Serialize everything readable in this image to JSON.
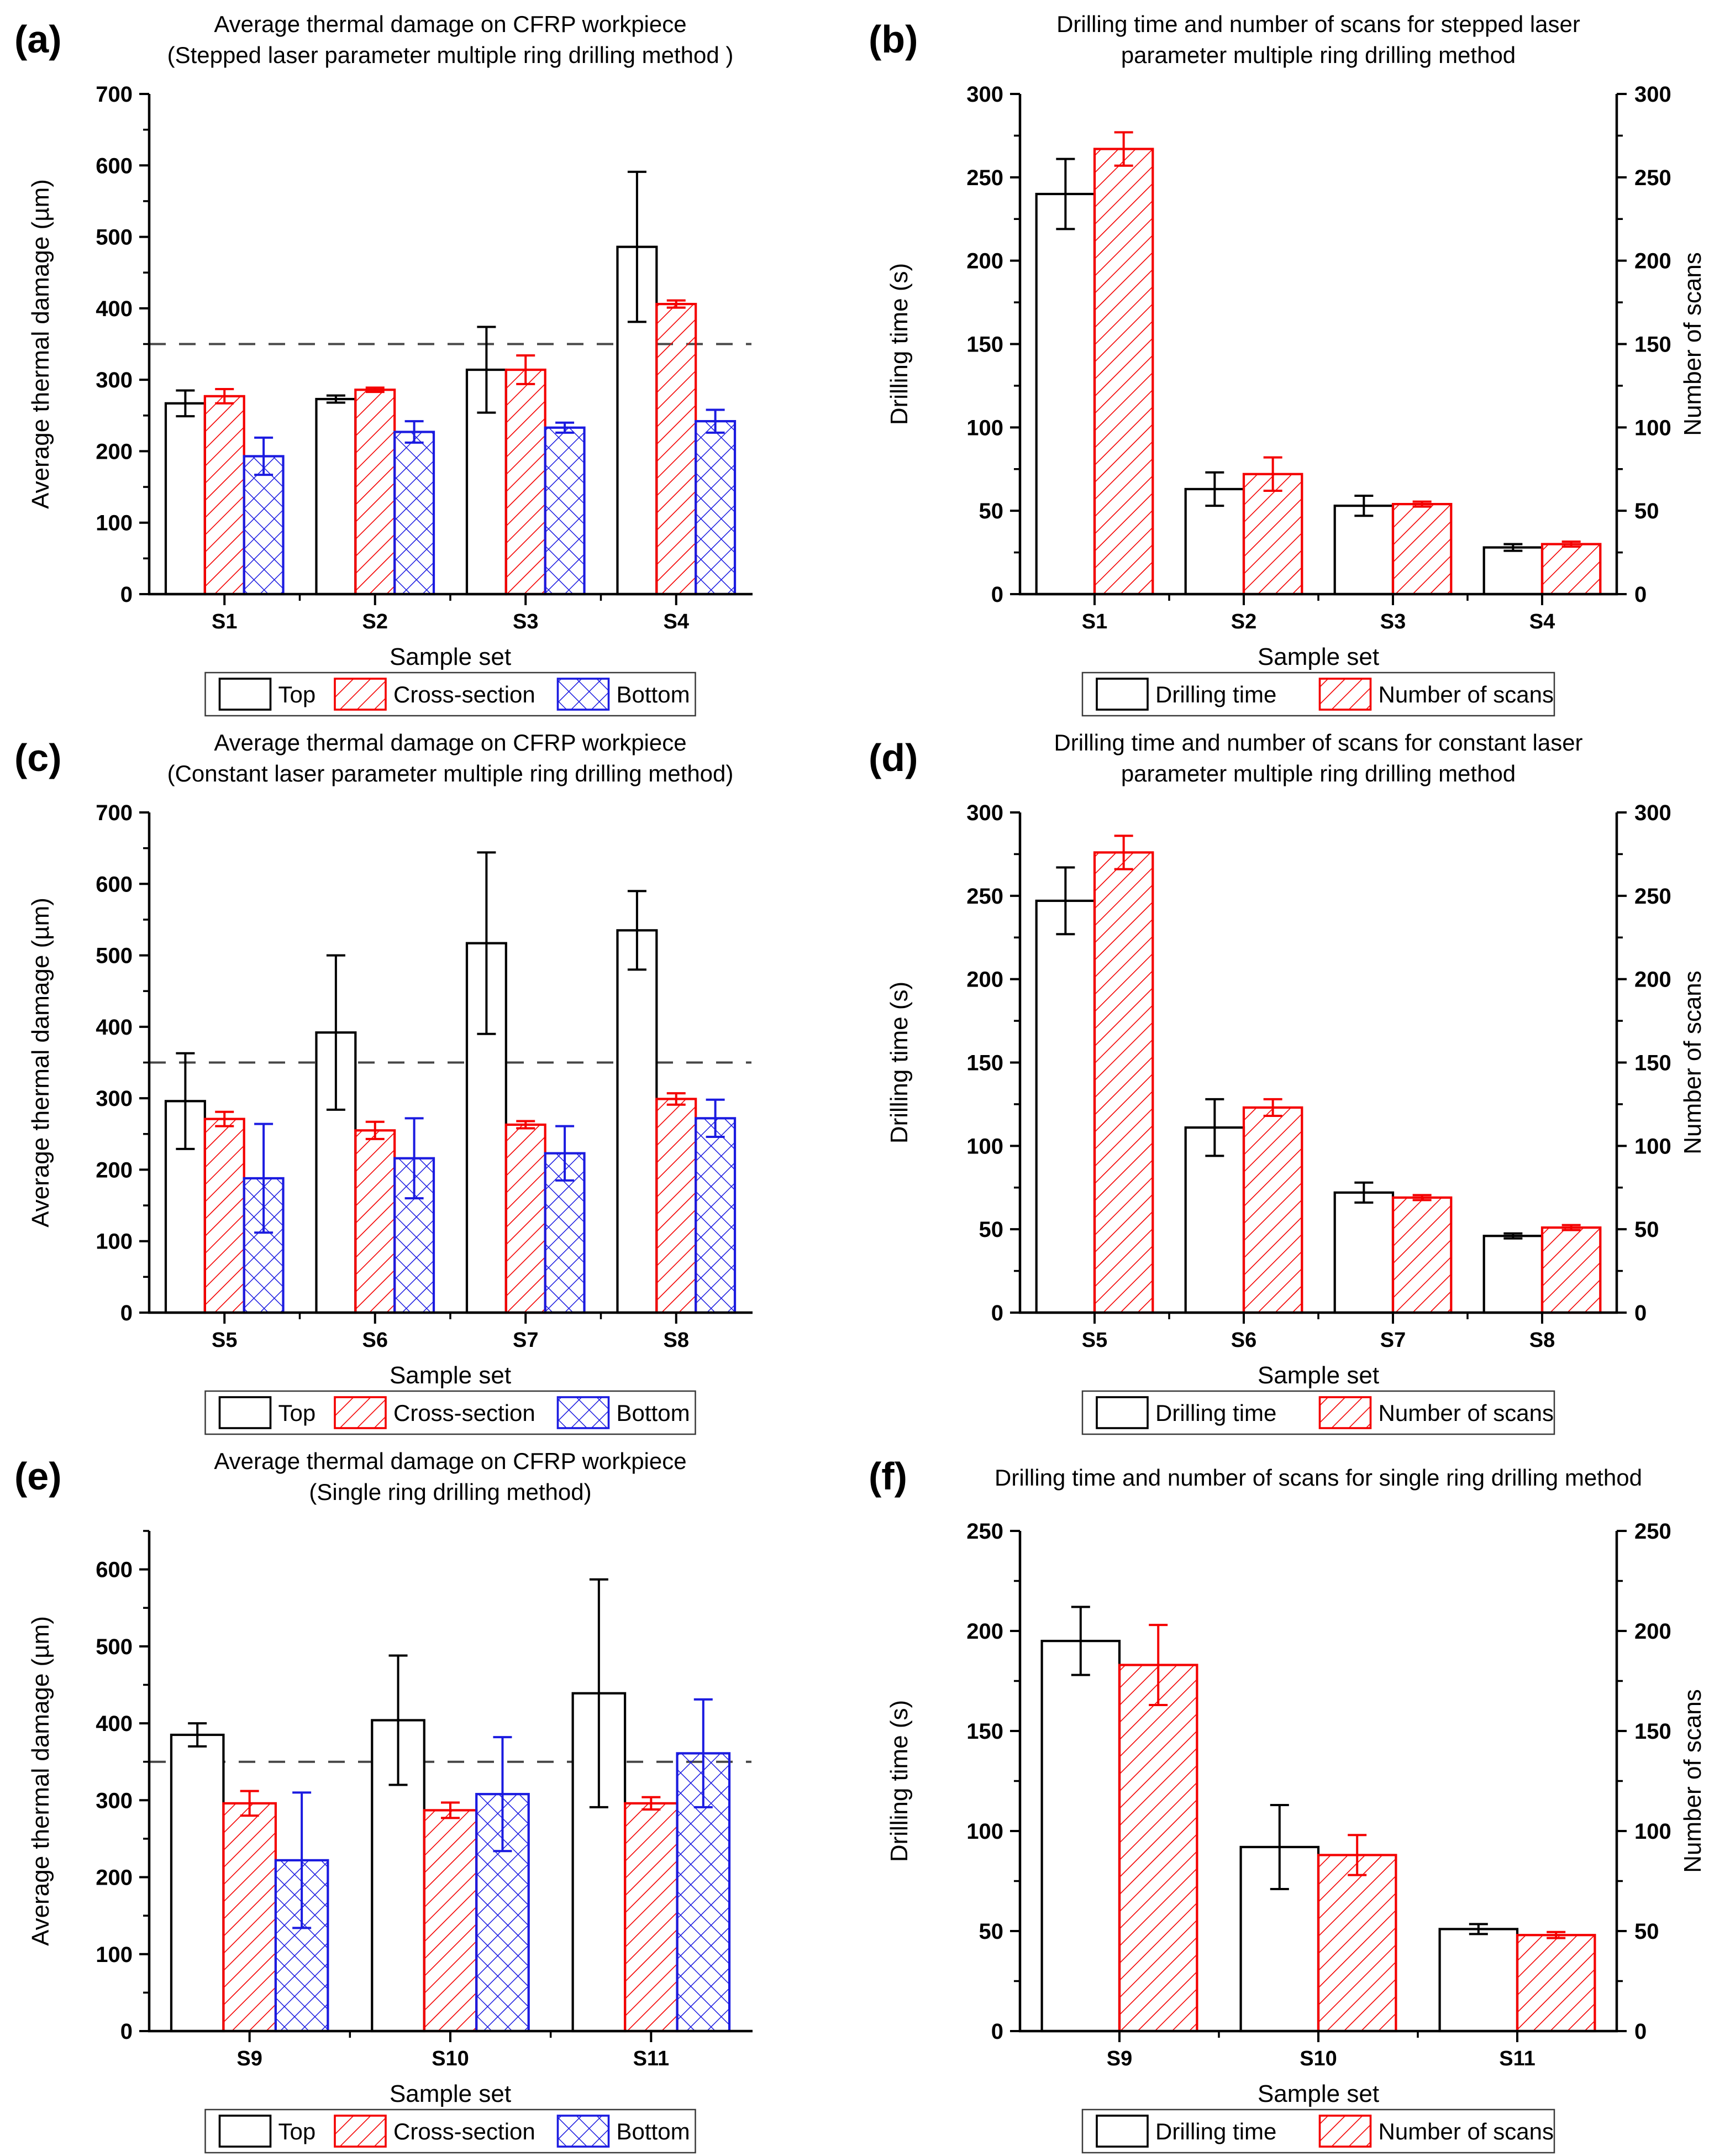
{
  "figure_title": "Thermal damage and drilling time figure panels",
  "colors": {
    "black": "#000000",
    "red": "#f40000",
    "blue": "#1b1be0",
    "ref_line": "#474747",
    "legend_border": "#3a3a3a"
  },
  "chart_data": [
    {
      "id": "a",
      "panel_label": "(a)",
      "type": "bar",
      "title_lines": [
        "Average thermal damage on CFRP workpiece",
        "(Stepped laser parameter multiple ring drilling method )"
      ],
      "categories": [
        "S1",
        "S2",
        "S3",
        "S4"
      ],
      "xlabel": "Sample set",
      "ylabel_left": "Average thermal damage (µm)",
      "ylabel_right": null,
      "ylim": [
        0,
        700
      ],
      "ymax_major": 700,
      "ytick_major": 100,
      "grid": false,
      "ref_line": 350,
      "legend_position": "bottom",
      "series": [
        {
          "name": "Top",
          "style": "solid-black",
          "values": [
            267,
            273,
            314,
            486
          ],
          "errors": [
            18,
            5,
            60,
            105
          ]
        },
        {
          "name": "Cross-section",
          "style": "hatch-red",
          "values": [
            277,
            286,
            314,
            406
          ],
          "errors": [
            10,
            3,
            20,
            5
          ]
        },
        {
          "name": "Bottom",
          "style": "cross-blue",
          "values": [
            193,
            227,
            233,
            242
          ],
          "errors": [
            26,
            15,
            7,
            16
          ]
        }
      ]
    },
    {
      "id": "b",
      "panel_label": "(b)",
      "type": "bar",
      "title_lines": [
        "Drilling time and number of scans for stepped laser",
        "parameter multiple ring drilling method"
      ],
      "categories": [
        "S1",
        "S2",
        "S3",
        "S4"
      ],
      "xlabel": "Sample set",
      "ylabel_left": "Drilling time (s)",
      "ylabel_right": "Number of scans",
      "ylim": [
        0,
        300
      ],
      "ymax_major": 300,
      "ytick_major": 50,
      "grid": false,
      "ref_line": null,
      "legend_position": "bottom",
      "series": [
        {
          "name": "Drilling time",
          "style": "solid-black",
          "values": [
            240,
            63,
            53,
            28
          ],
          "errors": [
            21,
            10,
            6,
            2
          ]
        },
        {
          "name": "Number of scans",
          "style": "hatch-red",
          "values": [
            267,
            72,
            54,
            30
          ],
          "errors": [
            10,
            10,
            1.5,
            1.5
          ]
        }
      ]
    },
    {
      "id": "c",
      "panel_label": "(c)",
      "type": "bar",
      "title_lines": [
        "Average thermal damage on CFRP workpiece",
        "(Constant laser parameter multiple ring drilling method)"
      ],
      "categories": [
        "S5",
        "S6",
        "S7",
        "S8"
      ],
      "xlabel": "Sample set",
      "ylabel_left": "Average thermal damage (µm)",
      "ylabel_right": null,
      "ylim": [
        0,
        700
      ],
      "ymax_major": 700,
      "ytick_major": 100,
      "grid": false,
      "ref_line": 350,
      "legend_position": "bottom",
      "series": [
        {
          "name": "Top",
          "style": "solid-black",
          "values": [
            296,
            392,
            517,
            535
          ],
          "errors": [
            67,
            108,
            127,
            55
          ]
        },
        {
          "name": "Cross-section",
          "style": "hatch-red",
          "values": [
            271,
            255,
            263,
            299
          ],
          "errors": [
            10,
            12,
            5,
            8
          ]
        },
        {
          "name": "Bottom",
          "style": "cross-blue",
          "values": [
            188,
            216,
            223,
            272
          ],
          "errors": [
            76,
            56,
            38,
            26
          ]
        }
      ]
    },
    {
      "id": "d",
      "panel_label": "(d)",
      "type": "bar",
      "title_lines": [
        "Drilling time and number of scans for constant laser",
        "parameter multiple ring drilling method"
      ],
      "categories": [
        "S5",
        "S6",
        "S7",
        "S8"
      ],
      "xlabel": "Sample set",
      "ylabel_left": "Drilling time (s)",
      "ylabel_right": "Number of scans",
      "ylim": [
        0,
        300
      ],
      "ymax_major": 300,
      "ytick_major": 50,
      "grid": false,
      "ref_line": null,
      "legend_position": "bottom",
      "series": [
        {
          "name": "Drilling time",
          "style": "solid-black",
          "values": [
            247,
            111,
            72,
            46
          ],
          "errors": [
            20,
            17,
            6,
            1.5
          ]
        },
        {
          "name": "Number of scans",
          "style": "hatch-red",
          "values": [
            276,
            123,
            69,
            51
          ],
          "errors": [
            10,
            5,
            1.5,
            1.5
          ]
        }
      ]
    },
    {
      "id": "e",
      "panel_label": "(e)",
      "type": "bar",
      "title_lines": [
        "Average thermal damage on CFRP workpiece",
        "(Single ring drilling method)"
      ],
      "categories": [
        "S9",
        "S10",
        "S11"
      ],
      "xlabel": "Sample set",
      "ylabel_left": "Average thermal damage (µm)",
      "ylabel_right": null,
      "ylim": [
        0,
        650
      ],
      "ymax_major": 600,
      "ytick_major": 100,
      "grid": false,
      "ref_line": 350,
      "legend_position": "bottom",
      "series": [
        {
          "name": "Top",
          "style": "solid-black",
          "values": [
            385,
            404,
            439
          ],
          "errors": [
            15,
            84,
            148
          ]
        },
        {
          "name": "Cross-section",
          "style": "hatch-red",
          "values": [
            296,
            287,
            296
          ],
          "errors": [
            16,
            10,
            8
          ]
        },
        {
          "name": "Bottom",
          "style": "cross-blue",
          "values": [
            222,
            308,
            361
          ],
          "errors": [
            88,
            74,
            70
          ]
        }
      ]
    },
    {
      "id": "f",
      "panel_label": "(f)",
      "type": "bar",
      "title_lines": [
        "Drilling time and number of scans for single ring drilling method"
      ],
      "categories": [
        "S9",
        "S10",
        "S11"
      ],
      "xlabel": "Sample set",
      "ylabel_left": "Drilling time (s)",
      "ylabel_right": "Number of scans",
      "ylim": [
        0,
        250
      ],
      "ymax_major": 250,
      "ytick_major": 50,
      "grid": false,
      "ref_line": null,
      "legend_position": "bottom",
      "series": [
        {
          "name": "Drilling time",
          "style": "solid-black",
          "values": [
            195,
            92,
            51
          ],
          "errors": [
            17,
            21,
            2.5
          ]
        },
        {
          "name": "Number of scans",
          "style": "hatch-red",
          "values": [
            183,
            88,
            48
          ],
          "errors": [
            20,
            10,
            1.5
          ]
        }
      ]
    }
  ]
}
